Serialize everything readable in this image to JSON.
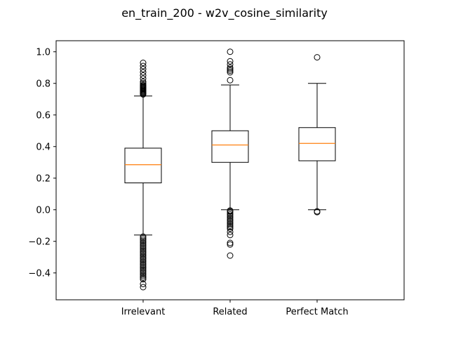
{
  "chart_data": {
    "type": "boxplot",
    "title": "en_train_200 - w2v_cosine_similarity",
    "xlabel": "",
    "ylabel": "",
    "ylim": [
      -0.57,
      1.07
    ],
    "yticks": [
      -0.4,
      -0.2,
      0.0,
      0.2,
      0.4,
      0.6,
      0.8,
      1.0
    ],
    "ytick_labels": [
      "−0.4",
      "−0.2",
      "0.0",
      "0.2",
      "0.4",
      "0.6",
      "0.8",
      "1.0"
    ],
    "grid": false,
    "colors": {
      "box": "#000000",
      "median": "#ff7f0e",
      "flier": "#000000"
    },
    "categories": [
      "Irrelevant",
      "Related",
      "Perfect Match"
    ],
    "boxes": [
      {
        "label": "Irrelevant",
        "whisker_low": -0.16,
        "q1": 0.17,
        "median": 0.285,
        "q3": 0.39,
        "whisker_high": 0.72,
        "fliers": [
          0.93,
          0.91,
          0.89,
          0.87,
          0.85,
          0.83,
          0.81,
          0.8,
          0.79,
          0.785,
          0.78,
          0.775,
          0.77,
          0.765,
          0.76,
          0.755,
          0.75,
          0.745,
          0.74,
          0.735,
          0.73,
          -0.17,
          -0.18,
          -0.19,
          -0.2,
          -0.21,
          -0.22,
          -0.23,
          -0.24,
          -0.25,
          -0.26,
          -0.27,
          -0.28,
          -0.29,
          -0.3,
          -0.31,
          -0.32,
          -0.33,
          -0.34,
          -0.35,
          -0.36,
          -0.37,
          -0.38,
          -0.39,
          -0.4,
          -0.41,
          -0.42,
          -0.43,
          -0.44,
          -0.47,
          -0.49
        ]
      },
      {
        "label": "Related",
        "whisker_low": 0.0,
        "q1": 0.3,
        "median": 0.41,
        "q3": 0.5,
        "whisker_high": 0.79,
        "fliers": [
          1.0,
          0.94,
          0.92,
          0.9,
          0.89,
          0.88,
          0.87,
          0.82,
          -0.005,
          -0.01,
          -0.02,
          -0.03,
          -0.04,
          -0.05,
          -0.06,
          -0.07,
          -0.08,
          -0.09,
          -0.1,
          -0.11,
          -0.12,
          -0.14,
          -0.16,
          -0.21,
          -0.22,
          -0.29
        ]
      },
      {
        "label": "Perfect Match",
        "whisker_low": 0.0,
        "q1": 0.31,
        "median": 0.42,
        "q3": 0.52,
        "whisker_high": 0.8,
        "fliers": [
          0.965,
          -0.01,
          -0.015
        ]
      }
    ]
  }
}
